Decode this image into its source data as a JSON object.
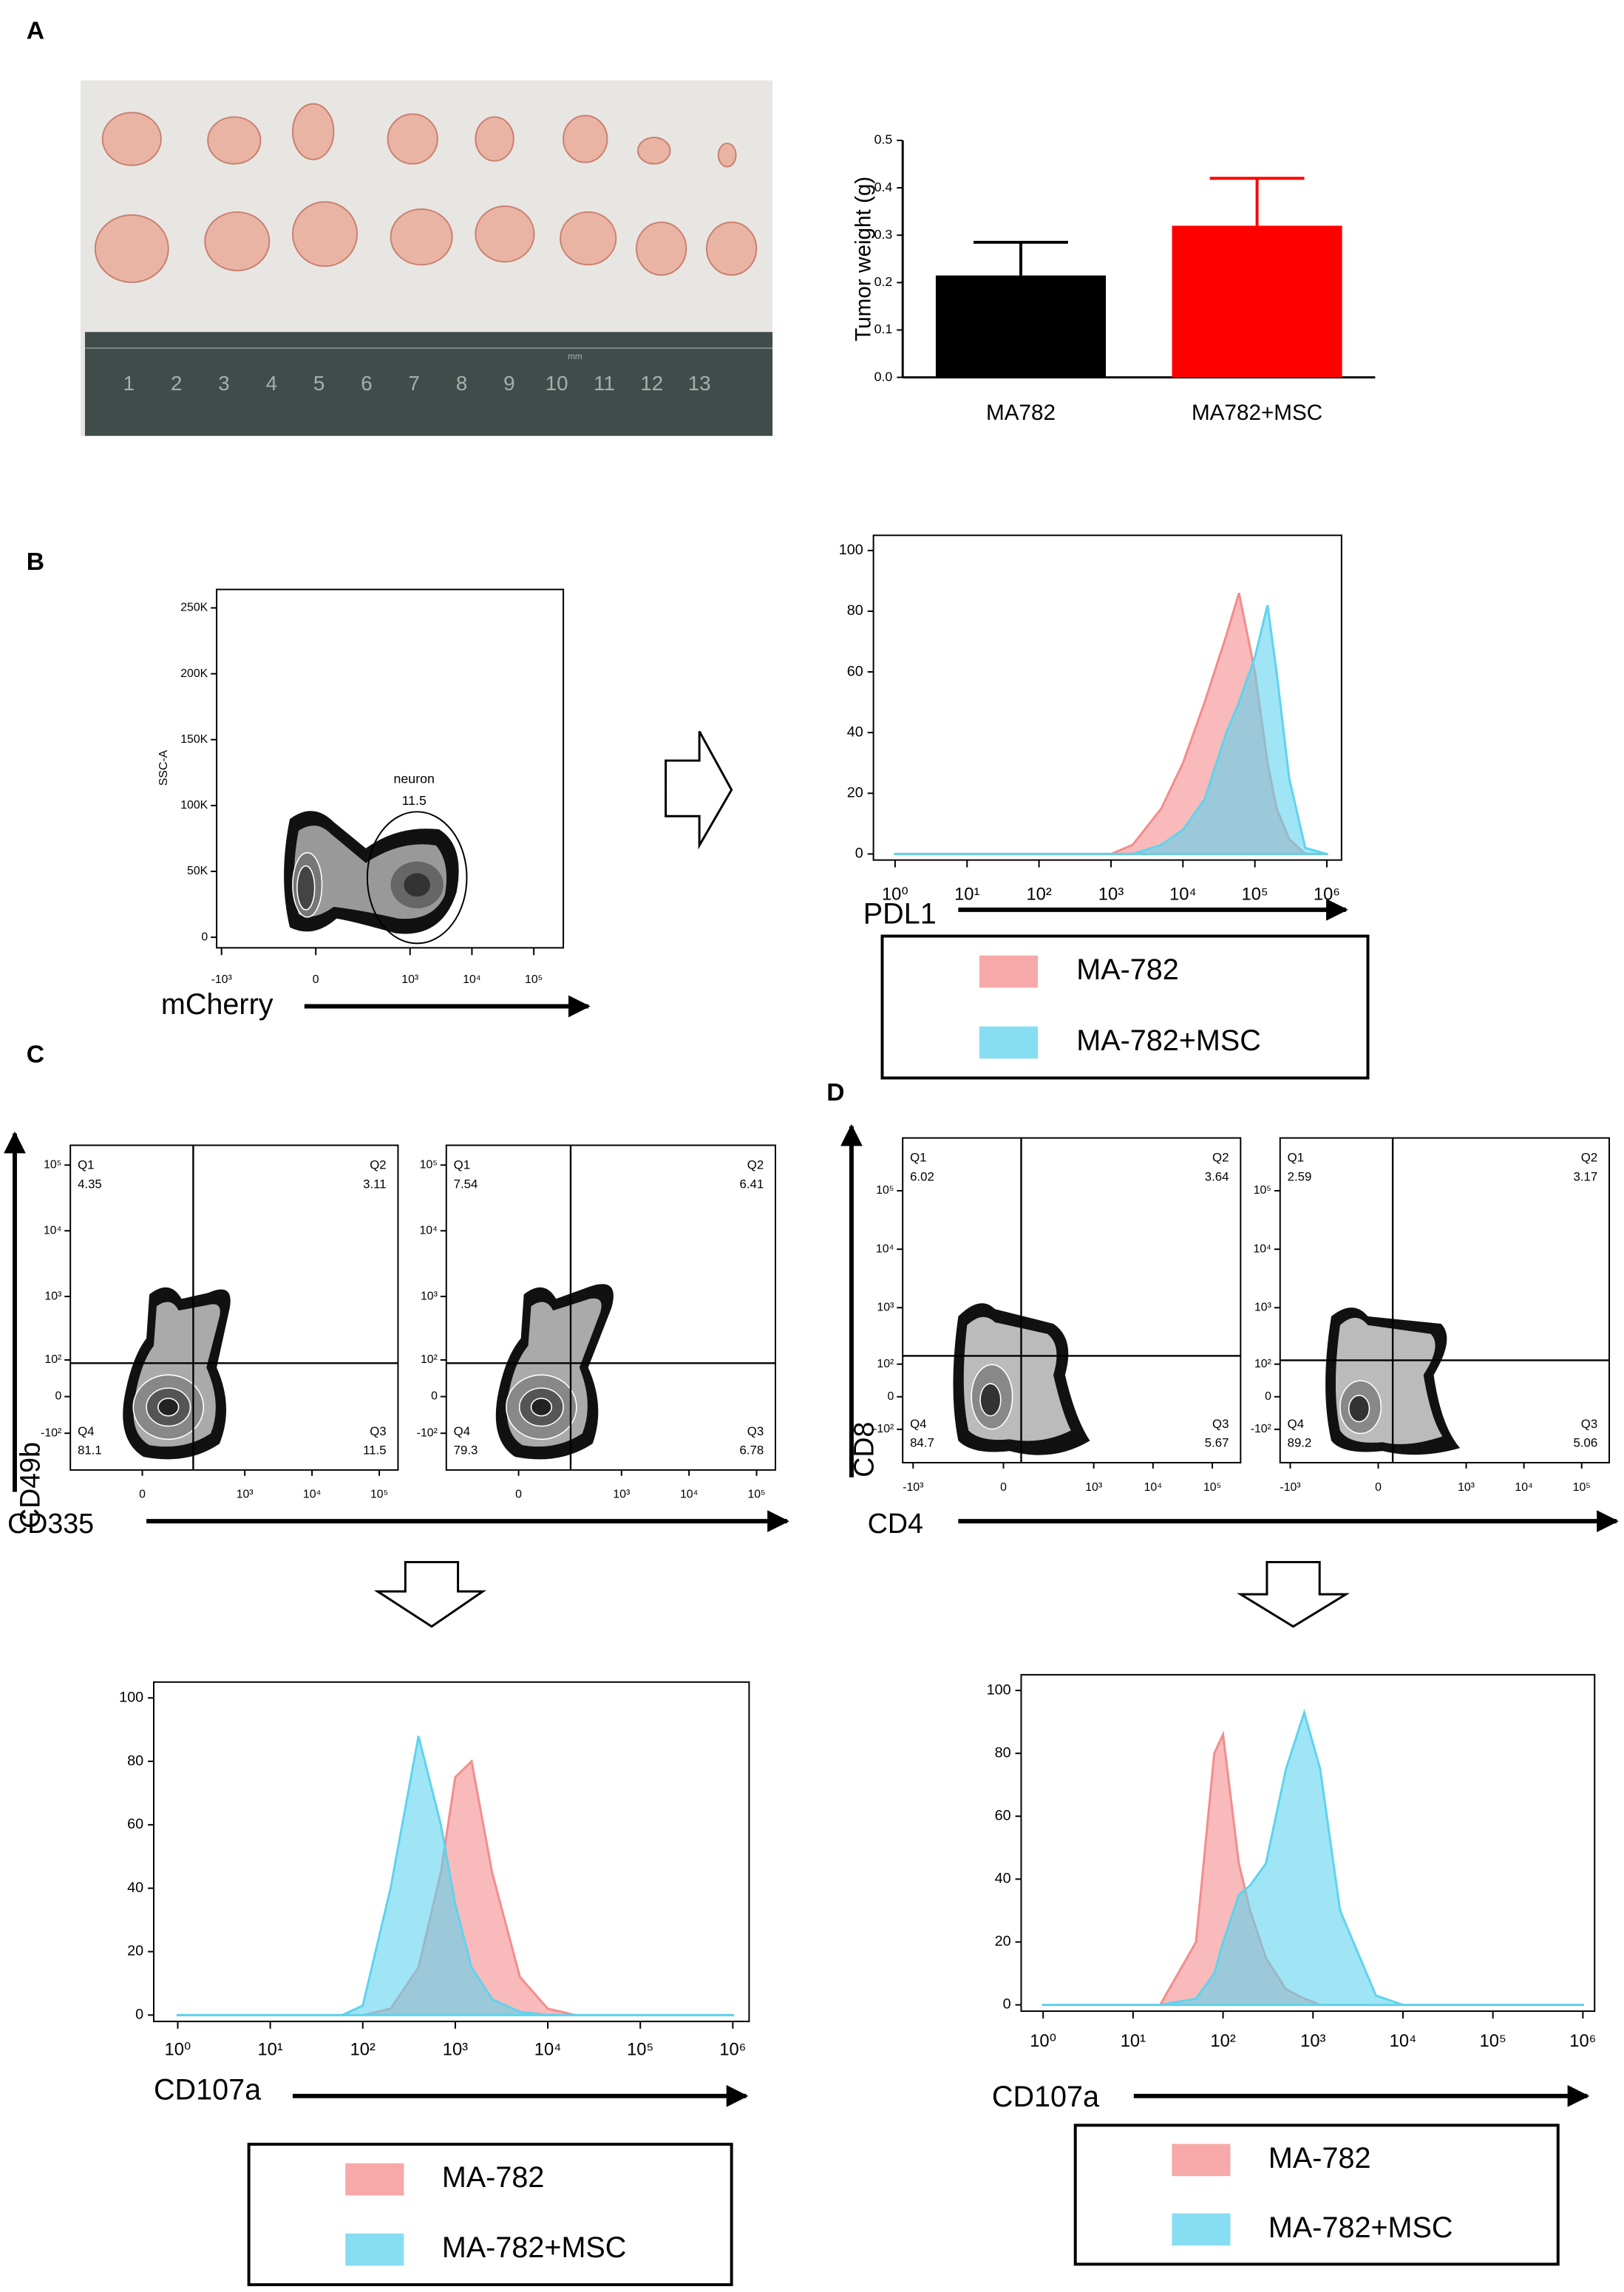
{
  "panel_labels": [
    "A",
    "B",
    "C",
    "D"
  ],
  "photo": {
    "ruler_labels": [
      1,
      2,
      3,
      4,
      5,
      6,
      7,
      8,
      9,
      10,
      11,
      12,
      13
    ],
    "unit": "mm"
  },
  "chart_data": [
    {
      "type": "bar",
      "ylabel": "Tumor weight (g)",
      "categories": [
        "MA782",
        "MA782+MSC"
      ],
      "values": [
        0.215,
        0.32
      ],
      "errors": [
        0.07,
        0.1
      ],
      "colors": [
        "#000000",
        "#ff0000"
      ],
      "ylim": [
        0,
        0.5
      ],
      "yticks": [
        {
          "value": 0,
          "label": "0.0"
        },
        {
          "value": 0.1,
          "label": "0.1"
        },
        {
          "value": 0.2,
          "label": "0.2"
        },
        {
          "value": 0.3,
          "label": "0.3"
        },
        {
          "value": 0.4,
          "label": "0.4"
        },
        {
          "value": 0.5,
          "label": "0.5"
        }
      ]
    },
    {
      "type": "contour",
      "xlabel": "mCherry",
      "ylabel": "SSC-A",
      "xscale": "biexponential",
      "xlim": [
        -1200,
        300000
      ],
      "xticks": [
        {
          "value": -1000,
          "label": "-10³"
        },
        0,
        {
          "value": 1000,
          "label": "10³"
        },
        {
          "value": 10000,
          "label": "10⁴"
        },
        {
          "value": 100000,
          "label": "10⁵"
        }
      ],
      "ylim": [
        -8000,
        264000
      ],
      "yticks": [
        0,
        {
          "value": 50000,
          "label": "50K"
        },
        {
          "value": 100000,
          "label": "100K"
        },
        {
          "value": 150000,
          "label": "150K"
        },
        {
          "value": 200000,
          "label": "200K"
        },
        {
          "value": 250000,
          "label": "250K"
        }
      ],
      "gate": {
        "name": "neuron",
        "value": 11.5
      }
    },
    {
      "type": "area",
      "xlabel": "PDL1",
      "xscale": "log",
      "xlim": [
        0.5,
        1600000
      ],
      "xticks": [
        {
          "value": 1,
          "label": "10⁰"
        },
        {
          "value": 10,
          "label": "10¹"
        },
        {
          "value": 100,
          "label": "10²"
        },
        {
          "value": 1000,
          "label": "10³"
        },
        {
          "value": 10000,
          "label": "10⁴"
        },
        {
          "value": 100000,
          "label": "10⁵"
        },
        {
          "value": 1000000,
          "label": "10⁶"
        }
      ],
      "ylim": [
        -2,
        105
      ],
      "yticks": [
        0,
        20,
        40,
        60,
        80,
        100
      ],
      "x": [
        1,
        1000,
        2000,
        5000,
        10000,
        20000,
        40000,
        60000,
        100000,
        150000,
        200000,
        300000,
        500000,
        1000000
      ],
      "series": [
        {
          "name": "MA-782",
          "color": "#f48c8c",
          "values": [
            0,
            0,
            3,
            15,
            30,
            50,
            72,
            86,
            60,
            30,
            15,
            5,
            0,
            0
          ]
        },
        {
          "name": "MA-782+MSC",
          "color": "#5fd3ee",
          "values": [
            0,
            0,
            0,
            3,
            8,
            18,
            40,
            50,
            65,
            82,
            60,
            25,
            2,
            0
          ]
        }
      ]
    },
    {
      "type": "quadrant",
      "xlabel": "CD335",
      "ylabel": "CD49b",
      "xscale": "biexponential",
      "xlim": [
        -350,
        190000
      ],
      "xticks": [
        0,
        {
          "value": 1000,
          "label": "10³"
        },
        {
          "value": 10000,
          "label": "10⁴"
        },
        {
          "value": 100000,
          "label": "10⁵"
        }
      ],
      "ylim": [
        -390,
        200000
      ],
      "yticks": [
        {
          "value": -100,
          "label": "-10²"
        },
        0,
        {
          "value": 100,
          "label": "10²"
        },
        {
          "value": 1000,
          "label": "10³"
        },
        {
          "value": 10000,
          "label": "10⁴"
        },
        {
          "value": 100000,
          "label": "10⁵"
        }
      ],
      "plots": [
        {
          "quadrants": [
            {
              "name": "Q1",
              "value": 4.35
            },
            {
              "name": "Q2",
              "value": 3.11
            },
            {
              "name": "Q3",
              "value": 11.5
            },
            {
              "name": "Q4",
              "value": 81.1
            }
          ]
        },
        {
          "quadrants": [
            {
              "name": "Q1",
              "value": 7.54
            },
            {
              "name": "Q2",
              "value": 6.41
            },
            {
              "name": "Q3",
              "value": 6.78
            },
            {
              "name": "Q4",
              "value": 79.3
            }
          ]
        }
      ]
    },
    {
      "type": "quadrant",
      "xlabel": "CD4",
      "ylabel": "CD8",
      "xscale": "biexponential",
      "xlim": [
        -1500,
        300000
      ],
      "xticks": [
        {
          "value": -1000,
          "label": "-10³"
        },
        0,
        {
          "value": 1000,
          "label": "10³"
        },
        {
          "value": 10000,
          "label": "10⁴"
        },
        {
          "value": 100000,
          "label": "10⁵"
        }
      ],
      "ylim": [
        -400,
        800000
      ],
      "yticks": [
        {
          "value": -100,
          "label": "-10²"
        },
        0,
        {
          "value": 100,
          "label": "10²"
        },
        {
          "value": 1000,
          "label": "10³"
        },
        {
          "value": 10000,
          "label": "10⁴"
        },
        {
          "value": 100000,
          "label": "10⁵"
        }
      ],
      "plots": [
        {
          "quadrants": [
            {
              "name": "Q1",
              "value": 6.02
            },
            {
              "name": "Q2",
              "value": 3.64
            },
            {
              "name": "Q3",
              "value": 5.67
            },
            {
              "name": "Q4",
              "value": 84.7
            }
          ]
        },
        {
          "quadrants": [
            {
              "name": "Q1",
              "value": 2.59
            },
            {
              "name": "Q2",
              "value": 3.17
            },
            {
              "name": "Q3",
              "value": 5.06
            },
            {
              "name": "Q4",
              "value": 89.2
            }
          ]
        }
      ]
    },
    {
      "type": "area",
      "xlabel": "CD107a",
      "xscale": "log",
      "xlim": [
        0.55,
        1500000
      ],
      "xticks": [
        {
          "value": 1,
          "label": "10⁰"
        },
        {
          "value": 10,
          "label": "10¹"
        },
        {
          "value": 100,
          "label": "10²"
        },
        {
          "value": 1000,
          "label": "10³"
        },
        {
          "value": 10000,
          "label": "10⁴"
        },
        {
          "value": 100000,
          "label": "10⁵"
        },
        {
          "value": 1000000,
          "label": "10⁶"
        }
      ],
      "ylim": [
        -2,
        105
      ],
      "yticks": [
        0,
        20,
        40,
        60,
        80,
        100
      ],
      "x": [
        1,
        60,
        100,
        200,
        400,
        700,
        1000,
        1500,
        2500,
        5000,
        10000,
        20000,
        1000000
      ],
      "series": [
        {
          "name": "MA-782",
          "color": "#f48c8c",
          "values": [
            0,
            0,
            0,
            2,
            15,
            45,
            75,
            80,
            45,
            12,
            2,
            0,
            0
          ]
        },
        {
          "name": "MA-782+MSC",
          "color": "#5fd3ee",
          "values": [
            0,
            0,
            3,
            40,
            88,
            60,
            35,
            15,
            5,
            1,
            0,
            0,
            0
          ]
        }
      ]
    },
    {
      "type": "area",
      "xlabel": "CD107a",
      "xscale": "log",
      "xlim": [
        0.57,
        1350000
      ],
      "xticks": [
        {
          "value": 1,
          "label": "10⁰"
        },
        {
          "value": 10,
          "label": "10¹"
        },
        {
          "value": 100,
          "label": "10²"
        },
        {
          "value": 1000,
          "label": "10³"
        },
        {
          "value": 10000,
          "label": "10⁴"
        },
        {
          "value": 100000,
          "label": "10⁵"
        },
        {
          "value": 1000000,
          "label": "10⁶"
        }
      ],
      "ylim": [
        -2,
        105
      ],
      "yticks": [
        0,
        20,
        40,
        60,
        80,
        100
      ],
      "x": [
        1,
        20,
        50,
        80,
        100,
        150,
        200,
        300,
        500,
        800,
        1200,
        2000,
        5000,
        10000,
        1000000
      ],
      "series": [
        {
          "name": "MA-782",
          "color": "#f48c8c",
          "values": [
            0,
            0,
            20,
            80,
            86,
            45,
            30,
            15,
            5,
            2,
            0,
            0,
            0,
            0,
            0
          ]
        },
        {
          "name": "MA-782+MSC",
          "color": "#5fd3ee",
          "values": [
            0,
            0,
            2,
            10,
            20,
            35,
            38,
            45,
            75,
            93,
            75,
            30,
            3,
            0,
            0
          ]
        }
      ]
    }
  ]
}
